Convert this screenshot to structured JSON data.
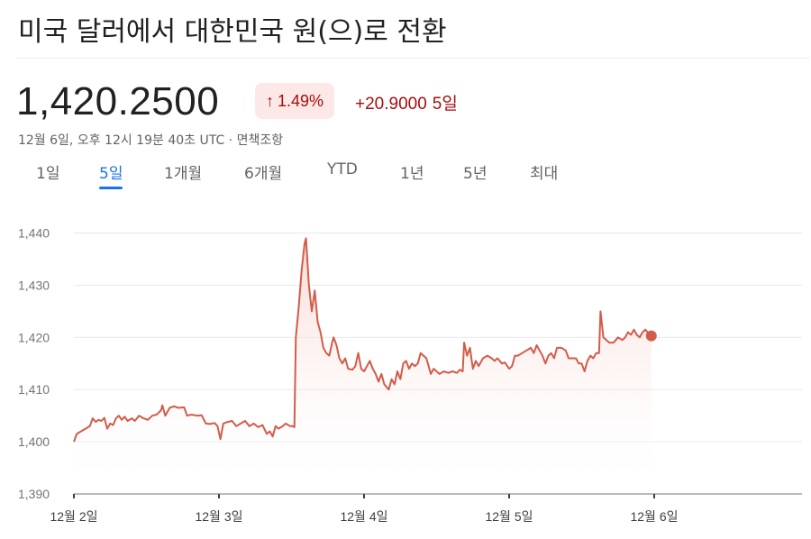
{
  "header": {
    "title": "미국 달러에서 대한민국 원(으)로 전환"
  },
  "quote": {
    "price": "1,420.2500",
    "badge_arrow": "↑",
    "badge_pct": "1.49%",
    "change_value": "+20.9000",
    "change_period": "5일",
    "meta": "12월 6일, 오후 12시 19분 40초 UTC · 면책조항"
  },
  "tabs": [
    {
      "label": "1일",
      "active": false
    },
    {
      "label": "5일",
      "active": true
    },
    {
      "label": "1개월",
      "active": false
    },
    {
      "label": "6개월",
      "active": false
    },
    {
      "label": "YTD",
      "active": false
    },
    {
      "label": "1년",
      "active": false
    },
    {
      "label": "5년",
      "active": false
    },
    {
      "label": "최대",
      "active": false
    }
  ],
  "colors": {
    "line": "#d25c4a",
    "fill_top": "#f6d5cf",
    "negative": "#a50e0e",
    "accent": "#1a73e8",
    "grid": "#e8eaed",
    "axis_text": "#70757a"
  },
  "chart_data": {
    "type": "area",
    "ylim": [
      1390,
      1442
    ],
    "yticks": [
      1390,
      1400,
      1410,
      1420,
      1430,
      1440
    ],
    "ytick_labels": [
      "1,390",
      "1,400",
      "1,410",
      "1,420",
      "1,430",
      "1,440"
    ],
    "xticks": [
      0,
      1,
      2,
      3,
      4
    ],
    "xtick_labels": [
      "12월 2일",
      "12월 3일",
      "12월 4일",
      "12월 5일",
      "12월 6일"
    ],
    "xlim": [
      0,
      4.9
    ],
    "series": [
      {
        "values": [
          [
            0.0,
            1400.0
          ],
          [
            0.02,
            1401.5
          ],
          [
            0.05,
            1402.0
          ],
          [
            0.08,
            1402.5
          ],
          [
            0.11,
            1403.0
          ],
          [
            0.13,
            1404.5
          ],
          [
            0.15,
            1403.8
          ],
          [
            0.17,
            1404.2
          ],
          [
            0.19,
            1404.0
          ],
          [
            0.21,
            1404.6
          ],
          [
            0.23,
            1402.5
          ],
          [
            0.25,
            1403.5
          ],
          [
            0.27,
            1403.2
          ],
          [
            0.29,
            1404.5
          ],
          [
            0.31,
            1405.0
          ],
          [
            0.33,
            1404.2
          ],
          [
            0.35,
            1404.8
          ],
          [
            0.37,
            1404.0
          ],
          [
            0.4,
            1404.5
          ],
          [
            0.42,
            1404.0
          ],
          [
            0.45,
            1405.0
          ],
          [
            0.48,
            1404.5
          ],
          [
            0.51,
            1404.2
          ],
          [
            0.54,
            1405.0
          ],
          [
            0.57,
            1405.2
          ],
          [
            0.6,
            1406.0
          ],
          [
            0.61,
            1407.0
          ],
          [
            0.63,
            1405.0
          ],
          [
            0.66,
            1406.5
          ],
          [
            0.69,
            1406.8
          ],
          [
            0.72,
            1406.5
          ],
          [
            0.76,
            1406.6
          ],
          [
            0.78,
            1405.0
          ],
          [
            0.81,
            1405.2
          ],
          [
            0.85,
            1405.0
          ],
          [
            0.88,
            1405.1
          ],
          [
            0.91,
            1403.5
          ],
          [
            0.94,
            1403.4
          ],
          [
            0.97,
            1403.6
          ],
          [
            0.99,
            1403.0
          ],
          [
            1.01,
            1400.5
          ],
          [
            1.03,
            1403.5
          ],
          [
            1.06,
            1403.8
          ],
          [
            1.09,
            1404.0
          ],
          [
            1.12,
            1403.0
          ],
          [
            1.15,
            1403.5
          ],
          [
            1.18,
            1404.0
          ],
          [
            1.21,
            1403.0
          ],
          [
            1.24,
            1403.5
          ],
          [
            1.27,
            1402.8
          ],
          [
            1.3,
            1403.2
          ],
          [
            1.33,
            1401.5
          ],
          [
            1.35,
            1402.0
          ],
          [
            1.37,
            1401.0
          ],
          [
            1.39,
            1403.0
          ],
          [
            1.41,
            1402.5
          ],
          [
            1.44,
            1403.0
          ],
          [
            1.46,
            1403.5
          ],
          [
            1.49,
            1403.0
          ],
          [
            1.51,
            1403.0
          ],
          [
            1.52,
            1402.8
          ],
          [
            1.53,
            1420.0
          ],
          [
            1.55,
            1426.0
          ],
          [
            1.57,
            1433.0
          ],
          [
            1.59,
            1438.0
          ],
          [
            1.6,
            1439.0
          ],
          [
            1.62,
            1430.0
          ],
          [
            1.64,
            1425.0
          ],
          [
            1.66,
            1429.0
          ],
          [
            1.68,
            1423.0
          ],
          [
            1.7,
            1421.0
          ],
          [
            1.72,
            1418.0
          ],
          [
            1.74,
            1417.0
          ],
          [
            1.76,
            1416.5
          ],
          [
            1.78,
            1419.0
          ],
          [
            1.79,
            1420.0
          ],
          [
            1.81,
            1418.5
          ],
          [
            1.83,
            1416.0
          ],
          [
            1.85,
            1415.0
          ],
          [
            1.87,
            1416.0
          ],
          [
            1.89,
            1414.0
          ],
          [
            1.92,
            1413.8
          ],
          [
            1.94,
            1414.5
          ],
          [
            1.96,
            1417.0
          ],
          [
            1.98,
            1414.0
          ],
          [
            2.0,
            1413.5
          ],
          [
            2.02,
            1414.5
          ],
          [
            2.04,
            1415.5
          ],
          [
            2.06,
            1414.0
          ],
          [
            2.08,
            1413.0
          ],
          [
            2.1,
            1411.5
          ],
          [
            2.12,
            1413.0
          ],
          [
            2.14,
            1411.0
          ],
          [
            2.17,
            1410.0
          ],
          [
            2.19,
            1412.0
          ],
          [
            2.21,
            1411.0
          ],
          [
            2.23,
            1413.5
          ],
          [
            2.25,
            1412.0
          ],
          [
            2.27,
            1415.0
          ],
          [
            2.29,
            1415.5
          ],
          [
            2.31,
            1414.0
          ],
          [
            2.33,
            1415.0
          ],
          [
            2.35,
            1414.5
          ],
          [
            2.37,
            1415.0
          ],
          [
            2.39,
            1417.0
          ],
          [
            2.41,
            1416.5
          ],
          [
            2.43,
            1416.0
          ],
          [
            2.45,
            1414.0
          ],
          [
            2.46,
            1413.0
          ],
          [
            2.48,
            1414.0
          ],
          [
            2.5,
            1413.5
          ],
          [
            2.52,
            1413.0
          ],
          [
            2.55,
            1413.5
          ],
          [
            2.58,
            1413.2
          ],
          [
            2.61,
            1413.5
          ],
          [
            2.64,
            1413.2
          ],
          [
            2.66,
            1413.8
          ],
          [
            2.68,
            1413.5
          ],
          [
            2.69,
            1419.0
          ],
          [
            2.71,
            1416.5
          ],
          [
            2.73,
            1418.0
          ],
          [
            2.75,
            1414.0
          ],
          [
            2.77,
            1415.5
          ],
          [
            2.79,
            1414.5
          ],
          [
            2.82,
            1416.0
          ],
          [
            2.85,
            1416.5
          ],
          [
            2.88,
            1416.0
          ],
          [
            2.9,
            1415.5
          ],
          [
            2.92,
            1416.0
          ],
          [
            2.95,
            1415.0
          ],
          [
            2.97,
            1415.2
          ],
          [
            3.0,
            1414.0
          ],
          [
            3.02,
            1414.5
          ],
          [
            3.04,
            1416.5
          ],
          [
            3.06,
            1416.5
          ],
          [
            3.09,
            1417.0
          ],
          [
            3.12,
            1417.5
          ],
          [
            3.15,
            1418.0
          ],
          [
            3.17,
            1417.0
          ],
          [
            3.19,
            1418.5
          ],
          [
            3.21,
            1417.5
          ],
          [
            3.23,
            1416.5
          ],
          [
            3.25,
            1415.0
          ],
          [
            3.27,
            1416.5
          ],
          [
            3.29,
            1417.0
          ],
          [
            3.31,
            1416.0
          ],
          [
            3.33,
            1418.0
          ],
          [
            3.36,
            1418.0
          ],
          [
            3.39,
            1417.5
          ],
          [
            3.41,
            1416.0
          ],
          [
            3.43,
            1416.0
          ],
          [
            3.46,
            1416.0
          ],
          [
            3.48,
            1415.0
          ],
          [
            3.5,
            1415.0
          ],
          [
            3.52,
            1413.5
          ],
          [
            3.54,
            1415.5
          ],
          [
            3.56,
            1416.5
          ],
          [
            3.58,
            1416.0
          ],
          [
            3.6,
            1417.0
          ],
          [
            3.62,
            1417.0
          ],
          [
            3.63,
            1425.0
          ],
          [
            3.65,
            1420.0
          ],
          [
            3.67,
            1419.5
          ],
          [
            3.69,
            1419.0
          ],
          [
            3.72,
            1419.0
          ],
          [
            3.75,
            1420.0
          ],
          [
            3.78,
            1419.5
          ],
          [
            3.8,
            1420.0
          ],
          [
            3.82,
            1421.0
          ],
          [
            3.84,
            1420.5
          ],
          [
            3.86,
            1421.5
          ],
          [
            3.88,
            1420.5
          ],
          [
            3.9,
            1420.0
          ],
          [
            3.92,
            1421.0
          ],
          [
            3.94,
            1421.5
          ],
          [
            3.96,
            1420.8
          ],
          [
            3.98,
            1420.3
          ]
        ]
      }
    ],
    "last_point": [
      3.98,
      1420.3
    ]
  }
}
